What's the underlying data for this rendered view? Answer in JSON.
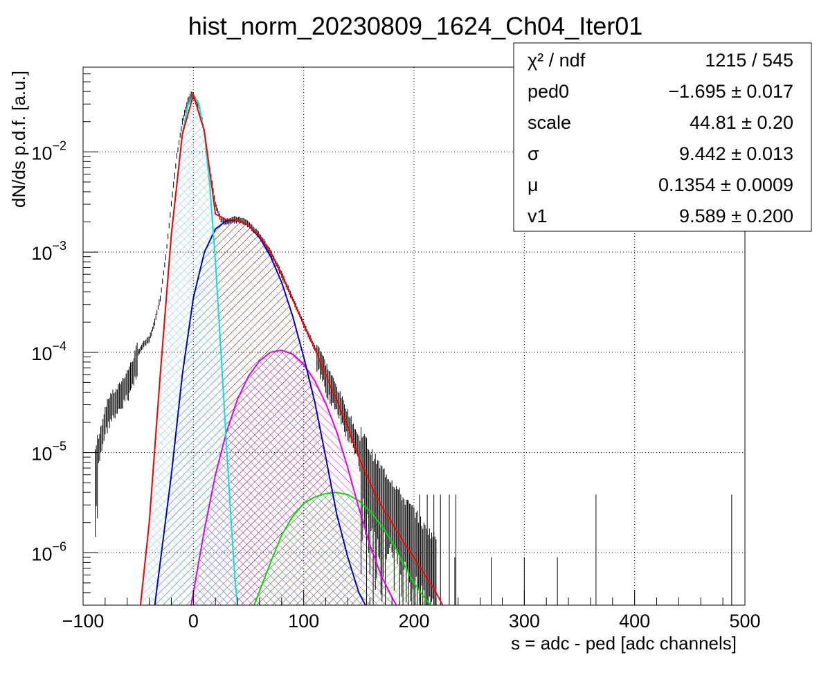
{
  "chart_data": {
    "type": "line",
    "title": "hist_norm_20230809_1624_Ch04_Iter01",
    "xlabel": "s = adc - ped [adc channels]",
    "ylabel": "dN/ds p.d.f. [a.u.]",
    "xlim": [
      -100,
      500
    ],
    "ylim": [
      3e-07,
      0.07
    ],
    "yscale": "log",
    "grid": true,
    "x_ticks": [
      {
        "value": -100,
        "label": "−100"
      },
      {
        "value": 0,
        "label": "0"
      },
      {
        "value": 100,
        "label": "100"
      },
      {
        "value": 200,
        "label": "200"
      },
      {
        "value": 300,
        "label": "300"
      },
      {
        "value": 400,
        "label": "400"
      },
      {
        "value": 500,
        "label": "500"
      }
    ],
    "y_ticks": [
      {
        "value": 1e-06,
        "base": "10",
        "exp": "−6"
      },
      {
        "value": 1e-05,
        "base": "10",
        "exp": "−5"
      },
      {
        "value": 0.0001,
        "base": "10",
        "exp": "−4"
      },
      {
        "value": 0.001,
        "base": "10",
        "exp": "−3"
      },
      {
        "value": 0.01,
        "base": "10",
        "exp": "−2"
      }
    ],
    "stats_box": {
      "position": "top-right",
      "rows": [
        {
          "name": "χ² / ndf",
          "value": "1215 / 545"
        },
        {
          "name": "ped0",
          "value": "−1.695 ± 0.017"
        },
        {
          "name": "scale",
          "value": "44.81 ± 0.20"
        },
        {
          "name": "σ",
          "value": "9.442 ± 0.013"
        },
        {
          "name": "μ",
          "value": "0.1354 ± 0.0009"
        },
        {
          "name": "v1",
          "value": "9.589 ± 0.200"
        }
      ]
    },
    "series": [
      {
        "role": "data histogram",
        "color": "#000000",
        "points": [
          [
            -89,
            6e-06
          ],
          [
            -85,
            1.2e-05
          ],
          [
            -80,
            2.2e-05
          ],
          [
            -75,
            3e-05
          ],
          [
            -70,
            3.2e-05
          ],
          [
            -65,
            4e-05
          ],
          [
            -60,
            5e-05
          ],
          [
            -55,
            6.5e-05
          ],
          [
            -50,
            0.0001
          ],
          [
            -45,
            0.00012
          ],
          [
            -40,
            0.000135
          ],
          [
            -35,
            0.0002
          ],
          [
            -30,
            0.00035
          ],
          [
            -25,
            0.0009
          ],
          [
            -20,
            0.003
          ],
          [
            -15,
            0.009
          ],
          [
            -10,
            0.02
          ],
          [
            -5,
            0.032
          ],
          [
            -2,
            0.037
          ],
          [
            0,
            0.036
          ],
          [
            5,
            0.029
          ],
          [
            10,
            0.016
          ],
          [
            15,
            0.0065
          ],
          [
            20,
            0.003
          ],
          [
            25,
            0.0021
          ],
          [
            30,
            0.002
          ],
          [
            35,
            0.0021
          ],
          [
            40,
            0.0021
          ],
          [
            45,
            0.00205
          ],
          [
            50,
            0.0019
          ],
          [
            60,
            0.00145
          ],
          [
            70,
            0.001
          ],
          [
            80,
            0.0006
          ],
          [
            90,
            0.00034
          ],
          [
            100,
            0.00019
          ],
          [
            110,
            0.00011
          ],
          [
            120,
            6e-05
          ],
          [
            130,
            3.5e-05
          ],
          [
            140,
            2e-05
          ],
          [
            150,
            1.1e-05
          ],
          [
            160,
            6e-06
          ],
          [
            170,
            4e-06
          ],
          [
            180,
            3e-06
          ],
          [
            190,
            2e-06
          ],
          [
            200,
            1.5e-06
          ],
          [
            210,
            1e-06
          ],
          [
            220,
            8e-07
          ]
        ]
      },
      {
        "role": "total fit",
        "color": "#ff0000",
        "curve": [
          [
            -48,
            3e-07
          ],
          [
            -40,
            2e-06
          ],
          [
            -30,
            6e-05
          ],
          [
            -20,
            0.0015
          ],
          [
            -10,
            0.015
          ],
          [
            0,
            0.037
          ],
          [
            10,
            0.016
          ],
          [
            20,
            0.0024
          ],
          [
            30,
            0.0021
          ],
          [
            40,
            0.0021
          ],
          [
            50,
            0.00185
          ],
          [
            60,
            0.00145
          ],
          [
            70,
            0.001
          ],
          [
            80,
            0.0006
          ],
          [
            90,
            0.00034
          ],
          [
            100,
            0.00019
          ],
          [
            110,
            0.00011
          ],
          [
            120,
            6e-05
          ],
          [
            130,
            3.3e-05
          ],
          [
            140,
            1.8e-05
          ],
          [
            150,
            9e-06
          ],
          [
            160,
            5e-06
          ],
          [
            170,
            3e-06
          ],
          [
            180,
            2e-06
          ],
          [
            190,
            1.3e-06
          ],
          [
            200,
            9e-07
          ],
          [
            210,
            6e-07
          ],
          [
            220,
            4e-07
          ],
          [
            226,
            3e-07
          ]
        ]
      },
      {
        "role": "pedestal component",
        "color": "#00e5e5",
        "curve": [
          [
            -48,
            3e-07
          ],
          [
            -40,
            2e-06
          ],
          [
            -30,
            6e-05
          ],
          [
            -20,
            0.0015
          ],
          [
            -10,
            0.015
          ],
          [
            -5,
            0.029
          ],
          [
            0,
            0.037
          ],
          [
            5,
            0.03
          ],
          [
            10,
            0.015
          ],
          [
            15,
            0.0045
          ],
          [
            20,
            0.0008
          ],
          [
            25,
            0.0001
          ],
          [
            30,
            1.2e-05
          ],
          [
            35,
            1.5e-06
          ],
          [
            38,
            5e-07
          ],
          [
            40,
            3e-07
          ]
        ]
      },
      {
        "role": "1 p.e. component",
        "color": "#0000cc",
        "curve": [
          [
            -35,
            3e-07
          ],
          [
            -20,
            6e-06
          ],
          [
            -10,
            6e-05
          ],
          [
            0,
            0.00035
          ],
          [
            10,
            0.001
          ],
          [
            20,
            0.0017
          ],
          [
            30,
            0.00205
          ],
          [
            40,
            0.0021
          ],
          [
            50,
            0.00185
          ],
          [
            60,
            0.0014
          ],
          [
            70,
            0.0009
          ],
          [
            80,
            0.0005
          ],
          [
            90,
            0.00023
          ],
          [
            100,
            9e-05
          ],
          [
            110,
            3.2e-05
          ],
          [
            120,
            9e-06
          ],
          [
            130,
            2.4e-06
          ],
          [
            140,
            9e-07
          ],
          [
            150,
            4e-07
          ],
          [
            156,
            3e-07
          ]
        ]
      },
      {
        "role": "2 p.e. component",
        "color": "#e600e6",
        "curve": [
          [
            -2,
            3e-07
          ],
          [
            10,
            1.7e-06
          ],
          [
            20,
            6e-06
          ],
          [
            30,
            1.6e-05
          ],
          [
            40,
            3.4e-05
          ],
          [
            50,
            5.8e-05
          ],
          [
            60,
            8.2e-05
          ],
          [
            70,
            0.0001
          ],
          [
            80,
            0.000105
          ],
          [
            90,
            9.6e-05
          ],
          [
            100,
            7.6e-05
          ],
          [
            110,
            5.2e-05
          ],
          [
            120,
            3.1e-05
          ],
          [
            130,
            1.6e-05
          ],
          [
            140,
            7e-06
          ],
          [
            150,
            2.8e-06
          ],
          [
            160,
            1.2e-06
          ],
          [
            170,
            6e-07
          ],
          [
            180,
            3.6e-07
          ],
          [
            184,
            3e-07
          ]
        ]
      },
      {
        "role": "3 p.e. component",
        "color": "#00dd00",
        "curve": [
          [
            55,
            3e-07
          ],
          [
            70,
            8e-07
          ],
          [
            80,
            1.5e-06
          ],
          [
            90,
            2.3e-06
          ],
          [
            100,
            3.1e-06
          ],
          [
            110,
            3.6e-06
          ],
          [
            120,
            3.9e-06
          ],
          [
            130,
            4e-06
          ],
          [
            140,
            3.8e-06
          ],
          [
            150,
            3.3e-06
          ],
          [
            160,
            2.6e-06
          ],
          [
            170,
            1.9e-06
          ],
          [
            180,
            1.3e-06
          ],
          [
            190,
            8e-07
          ],
          [
            200,
            5e-07
          ],
          [
            210,
            3.5e-07
          ],
          [
            215,
            3e-07
          ]
        ]
      }
    ]
  }
}
